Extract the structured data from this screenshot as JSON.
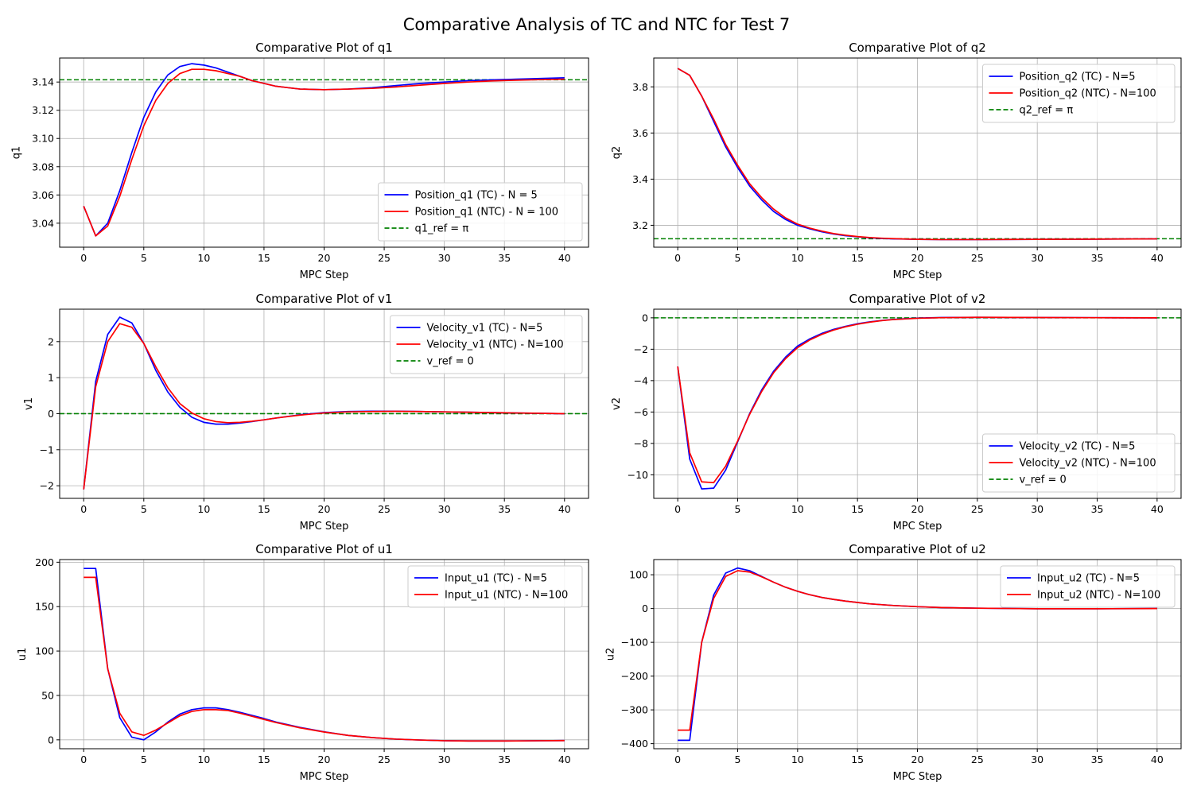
{
  "figure_title": "Comparative Analysis of TC and NTC for Test 7",
  "colors": {
    "tc": "#0000ff",
    "ntc": "#ff0000",
    "ref": "#008000"
  },
  "chart_data": [
    {
      "id": "q1",
      "type": "line",
      "title": "Comparative Plot of q1",
      "xlabel": "MPC Step",
      "ylabel": "q1",
      "xlim": [
        -2,
        42
      ],
      "ylim": [
        3.023,
        3.157
      ],
      "xticks": [
        0,
        5,
        10,
        15,
        20,
        25,
        30,
        35,
        40
      ],
      "xtick_labels": [
        "0",
        "5",
        "10",
        "15",
        "20",
        "25",
        "30",
        "35",
        "40"
      ],
      "yticks": [
        3.04,
        3.06,
        3.08,
        3.1,
        3.12,
        3.14
      ],
      "ytick_labels": [
        "3.04",
        "3.06",
        "3.08",
        "3.10",
        "3.12",
        "3.14"
      ],
      "grid": true,
      "legend_position": "lower-right",
      "reference": {
        "name": "q1_ref = π",
        "value": 3.14159
      },
      "series": [
        {
          "name": "Position_q1 (TC) - N = 5",
          "color": "#0000ff",
          "x": [
            0,
            1,
            2,
            3,
            4,
            5,
            6,
            7,
            8,
            9,
            10,
            11,
            12,
            13,
            14,
            15,
            16,
            17,
            18,
            19,
            20,
            22,
            24,
            26,
            28,
            30,
            32,
            34,
            36,
            38,
            40
          ],
          "values": [
            3.052,
            3.031,
            3.04,
            3.063,
            3.09,
            3.115,
            3.133,
            3.145,
            3.151,
            3.153,
            3.152,
            3.15,
            3.147,
            3.144,
            3.141,
            3.139,
            3.137,
            3.136,
            3.135,
            3.1348,
            3.1346,
            3.135,
            3.136,
            3.1375,
            3.139,
            3.14,
            3.141,
            3.1415,
            3.142,
            3.1425,
            3.143
          ]
        },
        {
          "name": "Position_q1 (NTC) - N = 100",
          "color": "#ff0000",
          "x": [
            0,
            1,
            2,
            3,
            4,
            5,
            6,
            7,
            8,
            9,
            10,
            11,
            12,
            13,
            14,
            15,
            16,
            17,
            18,
            19,
            20,
            22,
            24,
            26,
            28,
            30,
            32,
            34,
            36,
            38,
            40
          ],
          "values": [
            3.052,
            3.031,
            3.038,
            3.059,
            3.085,
            3.109,
            3.127,
            3.139,
            3.146,
            3.149,
            3.149,
            3.148,
            3.146,
            3.144,
            3.141,
            3.139,
            3.137,
            3.136,
            3.135,
            3.1348,
            3.1346,
            3.135,
            3.1355,
            3.1365,
            3.1378,
            3.139,
            3.14,
            3.1408,
            3.1413,
            3.1417,
            3.142
          ]
        }
      ]
    },
    {
      "id": "q2",
      "type": "line",
      "title": "Comparative Plot of q2",
      "xlabel": "MPC Step",
      "ylabel": "q2",
      "xlim": [
        -2,
        42
      ],
      "ylim": [
        3.105,
        3.925
      ],
      "xticks": [
        0,
        5,
        10,
        15,
        20,
        25,
        30,
        35,
        40
      ],
      "xtick_labels": [
        "0",
        "5",
        "10",
        "15",
        "20",
        "25",
        "30",
        "35",
        "40"
      ],
      "yticks": [
        3.2,
        3.4,
        3.6,
        3.8
      ],
      "ytick_labels": [
        "3.2",
        "3.4",
        "3.6",
        "3.8"
      ],
      "grid": true,
      "legend_position": "upper-right",
      "reference": {
        "name": "q2_ref = π",
        "value": 3.14159
      },
      "series": [
        {
          "name": "Position_q2 (TC) - N=5",
          "color": "#0000ff",
          "x": [
            0,
            1,
            2,
            3,
            4,
            5,
            6,
            7,
            8,
            9,
            10,
            11,
            12,
            13,
            14,
            15,
            16,
            17,
            18,
            20,
            22,
            25,
            30,
            35,
            40
          ],
          "values": [
            3.88,
            3.85,
            3.76,
            3.65,
            3.54,
            3.45,
            3.37,
            3.31,
            3.26,
            3.225,
            3.2,
            3.185,
            3.172,
            3.162,
            3.155,
            3.15,
            3.146,
            3.143,
            3.141,
            3.139,
            3.138,
            3.138,
            3.139,
            3.14,
            3.141
          ]
        },
        {
          "name": "Position_q2 (NTC) - N=100",
          "color": "#ff0000",
          "x": [
            0,
            1,
            2,
            3,
            4,
            5,
            6,
            7,
            8,
            9,
            10,
            11,
            12,
            13,
            14,
            15,
            16,
            17,
            18,
            20,
            22,
            25,
            30,
            35,
            40
          ],
          "values": [
            3.88,
            3.85,
            3.76,
            3.66,
            3.55,
            3.46,
            3.38,
            3.32,
            3.27,
            3.232,
            3.205,
            3.188,
            3.175,
            3.164,
            3.157,
            3.151,
            3.147,
            3.144,
            3.142,
            3.139,
            3.138,
            3.138,
            3.139,
            3.14,
            3.141
          ]
        }
      ]
    },
    {
      "id": "v1",
      "type": "line",
      "title": "Comparative Plot of v1",
      "xlabel": "MPC Step",
      "ylabel": "v1",
      "xlim": [
        -2,
        42
      ],
      "ylim": [
        -2.35,
        2.9
      ],
      "xticks": [
        0,
        5,
        10,
        15,
        20,
        25,
        30,
        35,
        40
      ],
      "xtick_labels": [
        "0",
        "5",
        "10",
        "15",
        "20",
        "25",
        "30",
        "35",
        "40"
      ],
      "yticks": [
        -2,
        -1,
        0,
        1,
        2
      ],
      "ytick_labels": [
        "−2",
        "−1",
        "0",
        "1",
        "2"
      ],
      "grid": true,
      "legend_position": "upper-right",
      "reference": {
        "name": "v_ref = 0",
        "value": 0
      },
      "series": [
        {
          "name": "Velocity_v1 (TC) - N=5",
          "color": "#0000ff",
          "x": [
            0,
            1,
            2,
            3,
            4,
            5,
            6,
            7,
            8,
            9,
            10,
            11,
            12,
            13,
            14,
            15,
            16,
            18,
            20,
            22,
            24,
            26,
            28,
            30,
            32,
            34,
            36,
            38,
            40
          ],
          "values": [
            -2.1,
            0.9,
            2.2,
            2.68,
            2.52,
            1.95,
            1.2,
            0.6,
            0.18,
            -0.1,
            -0.24,
            -0.29,
            -0.29,
            -0.26,
            -0.22,
            -0.17,
            -0.12,
            -0.03,
            0.03,
            0.06,
            0.07,
            0.07,
            0.06,
            0.05,
            0.04,
            0.03,
            0.02,
            0.01,
            0.0
          ]
        },
        {
          "name": "Velocity_v1 (NTC) - N=100",
          "color": "#ff0000",
          "x": [
            0,
            1,
            2,
            3,
            4,
            5,
            6,
            7,
            8,
            9,
            10,
            11,
            12,
            13,
            14,
            15,
            16,
            18,
            20,
            22,
            24,
            26,
            28,
            30,
            32,
            34,
            36,
            38,
            40
          ],
          "values": [
            -2.1,
            0.75,
            2.0,
            2.5,
            2.4,
            1.95,
            1.3,
            0.72,
            0.28,
            0.02,
            -0.14,
            -0.22,
            -0.25,
            -0.24,
            -0.21,
            -0.17,
            -0.12,
            -0.04,
            0.02,
            0.05,
            0.06,
            0.065,
            0.06,
            0.05,
            0.04,
            0.03,
            0.02,
            0.01,
            0.0
          ]
        }
      ]
    },
    {
      "id": "v2",
      "type": "line",
      "title": "Comparative Plot of v2",
      "xlabel": "MPC Step",
      "ylabel": "v2",
      "xlim": [
        -2,
        42
      ],
      "ylim": [
        -11.5,
        0.55
      ],
      "xticks": [
        0,
        5,
        10,
        15,
        20,
        25,
        30,
        35,
        40
      ],
      "xtick_labels": [
        "0",
        "5",
        "10",
        "15",
        "20",
        "25",
        "30",
        "35",
        "40"
      ],
      "yticks": [
        -10,
        -8,
        -6,
        -4,
        -2,
        0
      ],
      "ytick_labels": [
        "−10",
        "−8",
        "−6",
        "−4",
        "−2",
        "0"
      ],
      "grid": true,
      "legend_position": "lower-right",
      "reference": {
        "name": "v_ref = 0",
        "value": 0
      },
      "series": [
        {
          "name": "Velocity_v2 (TC) - N=5",
          "color": "#0000ff",
          "x": [
            0,
            1,
            2,
            3,
            4,
            5,
            6,
            7,
            8,
            9,
            10,
            11,
            12,
            13,
            14,
            15,
            16,
            17,
            18,
            20,
            22,
            25,
            30,
            35,
            40
          ],
          "values": [
            -3.1,
            -9.0,
            -10.9,
            -10.85,
            -9.7,
            -7.9,
            -6.1,
            -4.6,
            -3.4,
            -2.5,
            -1.8,
            -1.35,
            -1.0,
            -0.74,
            -0.54,
            -0.38,
            -0.26,
            -0.17,
            -0.1,
            -0.02,
            0.02,
            0.03,
            0.02,
            0.01,
            0.0
          ]
        },
        {
          "name": "Velocity_v2 (NTC) - N=100",
          "color": "#ff0000",
          "x": [
            0,
            1,
            2,
            3,
            4,
            5,
            6,
            7,
            8,
            9,
            10,
            11,
            12,
            13,
            14,
            15,
            16,
            17,
            18,
            20,
            22,
            25,
            30,
            35,
            40
          ],
          "values": [
            -3.1,
            -8.6,
            -10.45,
            -10.5,
            -9.45,
            -7.85,
            -6.15,
            -4.7,
            -3.5,
            -2.6,
            -1.9,
            -1.42,
            -1.06,
            -0.78,
            -0.57,
            -0.41,
            -0.28,
            -0.18,
            -0.11,
            -0.03,
            0.01,
            0.03,
            0.02,
            0.01,
            0.0
          ]
        }
      ]
    },
    {
      "id": "u1",
      "type": "line",
      "title": "Comparative Plot of u1",
      "xlabel": "MPC Step",
      "ylabel": "u1",
      "xlim": [
        -2,
        42
      ],
      "ylim": [
        -10,
        203
      ],
      "xticks": [
        0,
        5,
        10,
        15,
        20,
        25,
        30,
        35,
        40
      ],
      "xtick_labels": [
        "0",
        "5",
        "10",
        "15",
        "20",
        "25",
        "30",
        "35",
        "40"
      ],
      "yticks": [
        0,
        50,
        100,
        150,
        200
      ],
      "ytick_labels": [
        "0",
        "50",
        "100",
        "150",
        "200"
      ],
      "grid": true,
      "legend_position": "upper-right",
      "series": [
        {
          "name": "Input_u1 (TC) - N=5",
          "color": "#0000ff",
          "x": [
            0,
            1,
            2,
            3,
            4,
            5,
            6,
            7,
            8,
            9,
            10,
            11,
            12,
            13,
            14,
            15,
            16,
            18,
            20,
            22,
            24,
            26,
            28,
            30,
            32,
            34,
            36,
            38,
            40
          ],
          "values": [
            193,
            193,
            80,
            25,
            3,
            0,
            9,
            20,
            29,
            34,
            36,
            36,
            34,
            31,
            27.5,
            24,
            20,
            14,
            9,
            5,
            2.5,
            0.8,
            -0.2,
            -1,
            -1.3,
            -1.3,
            -1.2,
            -1,
            -0.8
          ]
        },
        {
          "name": "Input_u1 (NTC) - N=100",
          "color": "#ff0000",
          "x": [
            0,
            1,
            2,
            3,
            4,
            5,
            6,
            7,
            8,
            9,
            10,
            11,
            12,
            13,
            14,
            15,
            16,
            18,
            20,
            22,
            24,
            26,
            28,
            30,
            32,
            34,
            36,
            38,
            40
          ],
          "values": [
            183,
            183,
            80,
            30,
            9,
            5,
            11,
            19,
            27,
            32,
            34,
            34,
            33,
            30,
            26.5,
            23,
            19.5,
            13.5,
            8.8,
            5,
            2.5,
            0.8,
            -0.2,
            -1,
            -1.3,
            -1.3,
            -1.2,
            -1,
            -0.8
          ]
        }
      ]
    },
    {
      "id": "u2",
      "type": "line",
      "title": "Comparative Plot of u2",
      "xlabel": "MPC Step",
      "ylabel": "u2",
      "xlim": [
        -2,
        42
      ],
      "ylim": [
        -415,
        145
      ],
      "xticks": [
        0,
        5,
        10,
        15,
        20,
        25,
        30,
        35,
        40
      ],
      "xtick_labels": [
        "0",
        "5",
        "10",
        "15",
        "20",
        "25",
        "30",
        "35",
        "40"
      ],
      "yticks": [
        -400,
        -300,
        -200,
        -100,
        0,
        100
      ],
      "ytick_labels": [
        "−400",
        "−300",
        "−200",
        "−100",
        "0",
        "100"
      ],
      "grid": true,
      "legend_position": "upper-right",
      "series": [
        {
          "name": "Input_u2 (TC) - N=5",
          "color": "#0000ff",
          "x": [
            0,
            1,
            2,
            3,
            4,
            5,
            6,
            7,
            8,
            9,
            10,
            11,
            12,
            13,
            14,
            15,
            16,
            18,
            20,
            22,
            25,
            30,
            35,
            40
          ],
          "values": [
            -390,
            -390,
            -100,
            40,
            105,
            120,
            112,
            95,
            78,
            63,
            51,
            41,
            33,
            27,
            22,
            18,
            14,
            9,
            5.5,
            3,
            1,
            -0.5,
            -0.5,
            0
          ]
        },
        {
          "name": "Input_u2 (NTC) - N=100",
          "color": "#ff0000",
          "x": [
            0,
            1,
            2,
            3,
            4,
            5,
            6,
            7,
            8,
            9,
            10,
            11,
            12,
            13,
            14,
            15,
            16,
            18,
            20,
            22,
            25,
            30,
            35,
            40
          ],
          "values": [
            -360,
            -360,
            -100,
            30,
            95,
            112,
            108,
            94,
            78,
            63,
            51,
            41,
            33,
            27,
            22,
            18,
            14,
            9,
            5.5,
            3,
            1,
            -0.5,
            -0.5,
            0
          ]
        }
      ]
    }
  ]
}
